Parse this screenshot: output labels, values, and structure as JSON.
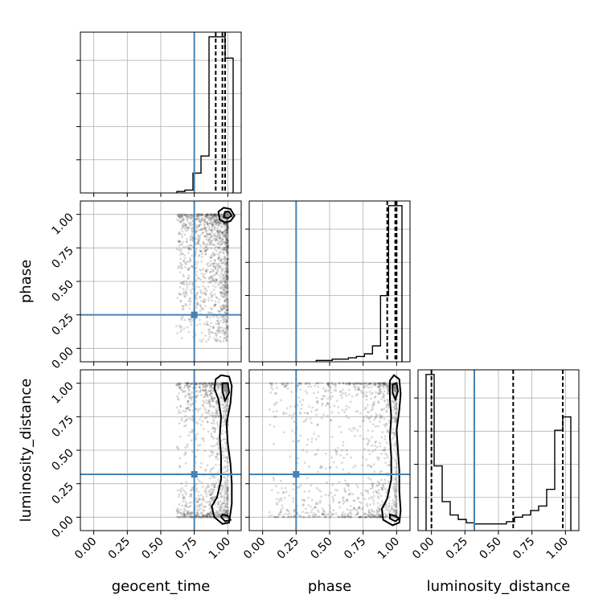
{
  "chart_data": {
    "type": "corner",
    "parameters": [
      "geocent_time",
      "phase",
      "luminosity_distance"
    ],
    "axis_range": [
      -0.1,
      1.1
    ],
    "ticks": [
      0.0,
      0.25,
      0.5,
      0.75,
      1.0
    ],
    "tick_labels": [
      "0.00",
      "0.25",
      "0.50",
      "0.75",
      "1.00"
    ],
    "grid": true,
    "colors": {
      "truth": "#4682b4",
      "hist": "#000000",
      "points": "#333333"
    },
    "truths": {
      "geocent_time": 0.75,
      "phase": 0.25,
      "luminosity_distance": 0.32
    },
    "histograms": [
      {
        "param": "geocent_time",
        "bin_edges": [
          0.62,
          0.68,
          0.74,
          0.8,
          0.86,
          0.92,
          0.98,
          1.04
        ],
        "counts": [
          1,
          2,
          14,
          26,
          110,
          110,
          95
        ],
        "quantiles": [
          0.91,
          0.96,
          0.98
        ],
        "truth": 0.75
      },
      {
        "param": "phase",
        "bin_edges": [
          0.4,
          0.46,
          0.52,
          0.58,
          0.64,
          0.7,
          0.76,
          0.82,
          0.88,
          0.94,
          1.0,
          1.04
        ],
        "counts": [
          1,
          1,
          2,
          2,
          3,
          4,
          6,
          12,
          50,
          118,
          118
        ],
        "quantiles": [
          0.93,
          0.99,
          1.0
        ],
        "truth": 0.25
      },
      {
        "param": "luminosity_distance",
        "bin_edges": [
          -0.04,
          0.02,
          0.08,
          0.14,
          0.2,
          0.26,
          0.32,
          0.38,
          0.44,
          0.5,
          0.56,
          0.62,
          0.68,
          0.74,
          0.8,
          0.86,
          0.92,
          0.98,
          1.04
        ],
        "counts": [
          140,
          58,
          26,
          14,
          10,
          7,
          6,
          6,
          6,
          6,
          8,
          12,
          14,
          18,
          22,
          37,
          90,
          102
        ],
        "quantiles": [
          0.0,
          0.61,
          0.98
        ],
        "truth": 0.32
      }
    ],
    "scatter_panels": [
      {
        "x_param": "geocent_time",
        "y_param": "phase",
        "mode_center": [
          1.0,
          1.0
        ],
        "contours": [
          [
            [
              0.94,
              0.96
            ],
            [
              0.98,
              0.94
            ],
            [
              1.02,
              0.95
            ],
            [
              1.05,
              0.99
            ],
            [
              1.02,
              1.04
            ],
            [
              0.97,
              1.05
            ],
            [
              0.93,
              1.02
            ],
            [
              0.94,
              0.96
            ]
          ],
          [
            [
              0.97,
              0.98
            ],
            [
              1.0,
              0.97
            ],
            [
              1.03,
              0.99
            ],
            [
              1.01,
              1.02
            ],
            [
              0.98,
              1.02
            ],
            [
              0.97,
              0.98
            ]
          ]
        ],
        "contour_fill": [
          [
            0.96,
            0.97
          ],
          [
            1.01,
            0.97
          ],
          [
            1.03,
            1.0
          ],
          [
            1.0,
            1.03
          ],
          [
            0.97,
            1.02
          ],
          [
            0.96,
            0.97
          ]
        ]
      },
      {
        "x_param": "geocent_time",
        "y_param": "luminosity_distance",
        "contours": [
          [
            [
              0.91,
              1.03
            ],
            [
              0.95,
              1.06
            ],
            [
              1.01,
              1.05
            ],
            [
              1.03,
              0.98
            ],
            [
              1.02,
              0.85
            ],
            [
              0.99,
              0.7
            ],
            [
              1.0,
              0.55
            ],
            [
              1.02,
              0.4
            ],
            [
              1.03,
              0.25
            ],
            [
              1.03,
              0.1
            ],
            [
              1.01,
              -0.04
            ],
            [
              0.96,
              -0.05
            ],
            [
              0.9,
              0.0
            ],
            [
              0.88,
              0.08
            ],
            [
              0.92,
              0.15
            ],
            [
              0.95,
              0.28
            ],
            [
              0.95,
              0.45
            ],
            [
              0.94,
              0.6
            ],
            [
              0.95,
              0.75
            ],
            [
              0.93,
              0.88
            ],
            [
              0.9,
              0.96
            ],
            [
              0.91,
              1.03
            ]
          ],
          [
            [
              0.96,
              1.0
            ],
            [
              1.0,
              1.0
            ],
            [
              1.01,
              0.93
            ],
            [
              0.98,
              0.87
            ],
            [
              0.96,
              0.94
            ],
            [
              0.96,
              1.0
            ]
          ],
          [
            [
              0.96,
              0.02
            ],
            [
              1.0,
              0.01
            ],
            [
              1.02,
              -0.02
            ],
            [
              0.98,
              -0.03
            ],
            [
              0.95,
              0.0
            ],
            [
              0.96,
              0.02
            ]
          ]
        ],
        "contour_fill": [
          [
            0.97,
            0.99
          ],
          [
            1.0,
            0.99
          ],
          [
            1.0,
            0.93
          ],
          [
            0.97,
            0.94
          ],
          [
            0.97,
            0.99
          ]
        ]
      },
      {
        "x_param": "phase",
        "y_param": "luminosity_distance",
        "contours": [
          [
            [
              0.95,
              1.02
            ],
            [
              0.98,
              1.06
            ],
            [
              1.02,
              1.03
            ],
            [
              1.03,
              0.92
            ],
            [
              1.02,
              0.8
            ],
            [
              1.0,
              0.65
            ],
            [
              1.01,
              0.5
            ],
            [
              1.02,
              0.35
            ],
            [
              1.02,
              0.2
            ],
            [
              1.03,
              0.05
            ],
            [
              1.02,
              -0.04
            ],
            [
              0.97,
              -0.06
            ],
            [
              0.9,
              -0.02
            ],
            [
              0.89,
              0.06
            ],
            [
              0.93,
              0.14
            ],
            [
              0.96,
              0.28
            ],
            [
              0.96,
              0.45
            ],
            [
              0.95,
              0.6
            ],
            [
              0.96,
              0.75
            ],
            [
              0.95,
              0.88
            ],
            [
              0.95,
              1.02
            ]
          ],
          [
            [
              0.97,
              0.99
            ],
            [
              1.0,
              1.0
            ],
            [
              1.01,
              0.94
            ],
            [
              0.99,
              0.88
            ],
            [
              0.97,
              0.93
            ],
            [
              0.97,
              0.99
            ]
          ],
          [
            [
              0.95,
              0.02
            ],
            [
              0.99,
              0.01
            ],
            [
              1.02,
              -0.01
            ],
            [
              0.99,
              -0.03
            ],
            [
              0.95,
              -0.01
            ],
            [
              0.95,
              0.02
            ]
          ]
        ],
        "contour_fill": [
          [
            0.98,
            0.99
          ],
          [
            1.0,
            0.99
          ],
          [
            1.0,
            0.93
          ],
          [
            0.98,
            0.94
          ],
          [
            0.98,
            0.99
          ]
        ]
      }
    ]
  }
}
